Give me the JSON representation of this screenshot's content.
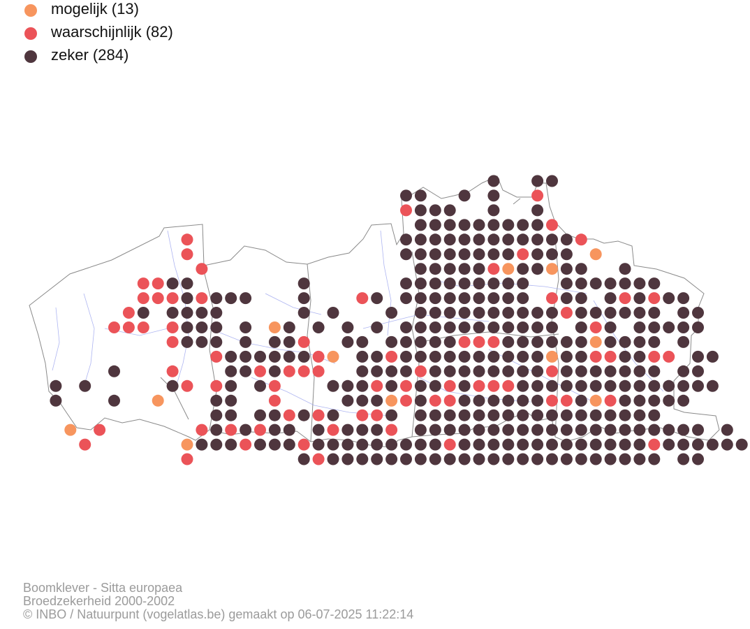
{
  "legend": [
    {
      "label": "mogelijk (13)",
      "color": "#f7955e"
    },
    {
      "label": "waarschijnlijk (82)",
      "color": "#eb5358"
    },
    {
      "label": "zeker (284)",
      "color": "#4f363e"
    }
  ],
  "footer": {
    "species": "Boomklever - Sitta europaea",
    "period": "Broedzekerheid 2000-2002",
    "credit": "© INBO / Natuurpunt (vogelatlas.be) gemaakt op 06-07-2025 11:22:14"
  },
  "colors": {
    "mogelijk": "#f7955e",
    "waarschijnlijk": "#eb5358",
    "zeker": "#4f363e",
    "border": "#8a8a8a",
    "river": "#9aa3ee"
  }
}
